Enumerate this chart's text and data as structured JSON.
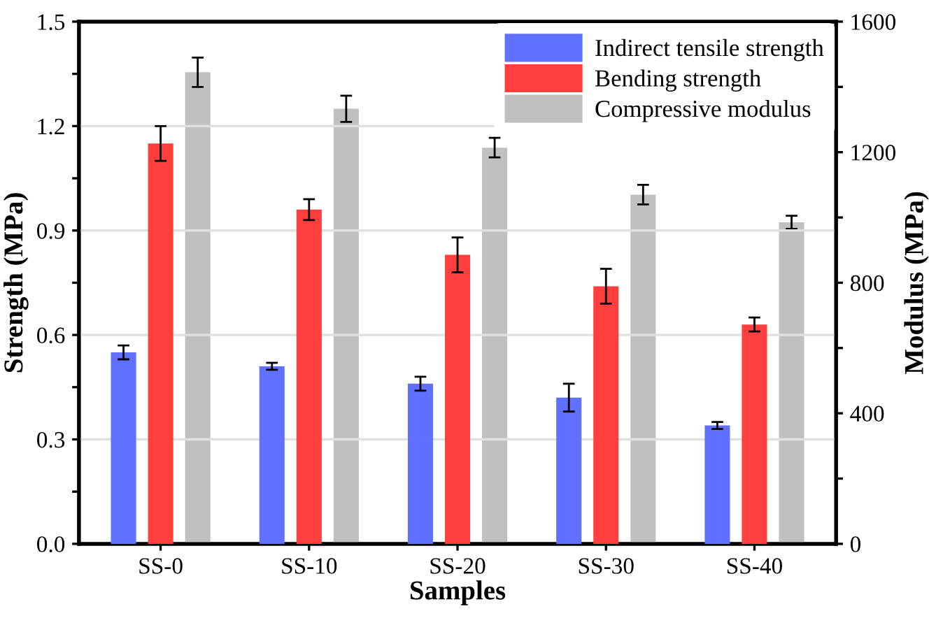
{
  "chart_data": {
    "type": "bar",
    "xlabel": "Samples",
    "ylabel": "Strength (MPa)",
    "y2label": "Modulus (MPa)",
    "categories": [
      "SS-0",
      "SS-10",
      "SS-20",
      "SS-30",
      "SS-40"
    ],
    "series": [
      {
        "name": "Indirect tensile strength",
        "color": "#6070ff",
        "values": [
          0.55,
          0.51,
          0.46,
          0.42,
          0.34
        ],
        "errors": [
          0.02,
          0.01,
          0.02,
          0.04,
          0.01
        ]
      },
      {
        "name": "Bending strength",
        "color": "#ff3e3e",
        "values": [
          1.15,
          0.96,
          0.83,
          0.74,
          0.63
        ],
        "errors": [
          0.05,
          0.03,
          0.05,
          0.05,
          0.02
        ]
      },
      {
        "name": "Compressive modulus",
        "color": "#c0c0c0",
        "values": [
          1445,
          1333,
          1214,
          1070,
          985
        ],
        "errors": [
          45,
          40,
          30,
          30,
          20
        ],
        "axis": "y2"
      }
    ],
    "ylim": [
      0,
      1.5
    ],
    "yticks": [
      {
        "value": 0,
        "label": "0.0"
      },
      {
        "value": 0.15,
        "label": null
      },
      0.3,
      {
        "value": 0.45,
        "label": null
      },
      0.6,
      {
        "value": 0.75,
        "label": null
      },
      0.9,
      {
        "value": 1.05,
        "label": null
      },
      1.2,
      {
        "value": 1.35,
        "label": null
      },
      1.5
    ],
    "y2lim": [
      0,
      1600
    ],
    "y2ticks": [
      0,
      {
        "value": 200,
        "label": null
      },
      400,
      {
        "value": 600,
        "label": null
      },
      800,
      {
        "value": 1000,
        "label": null
      },
      1200,
      {
        "value": 1400,
        "label": null
      },
      1600
    ],
    "grid": "y",
    "legend": "top right"
  }
}
